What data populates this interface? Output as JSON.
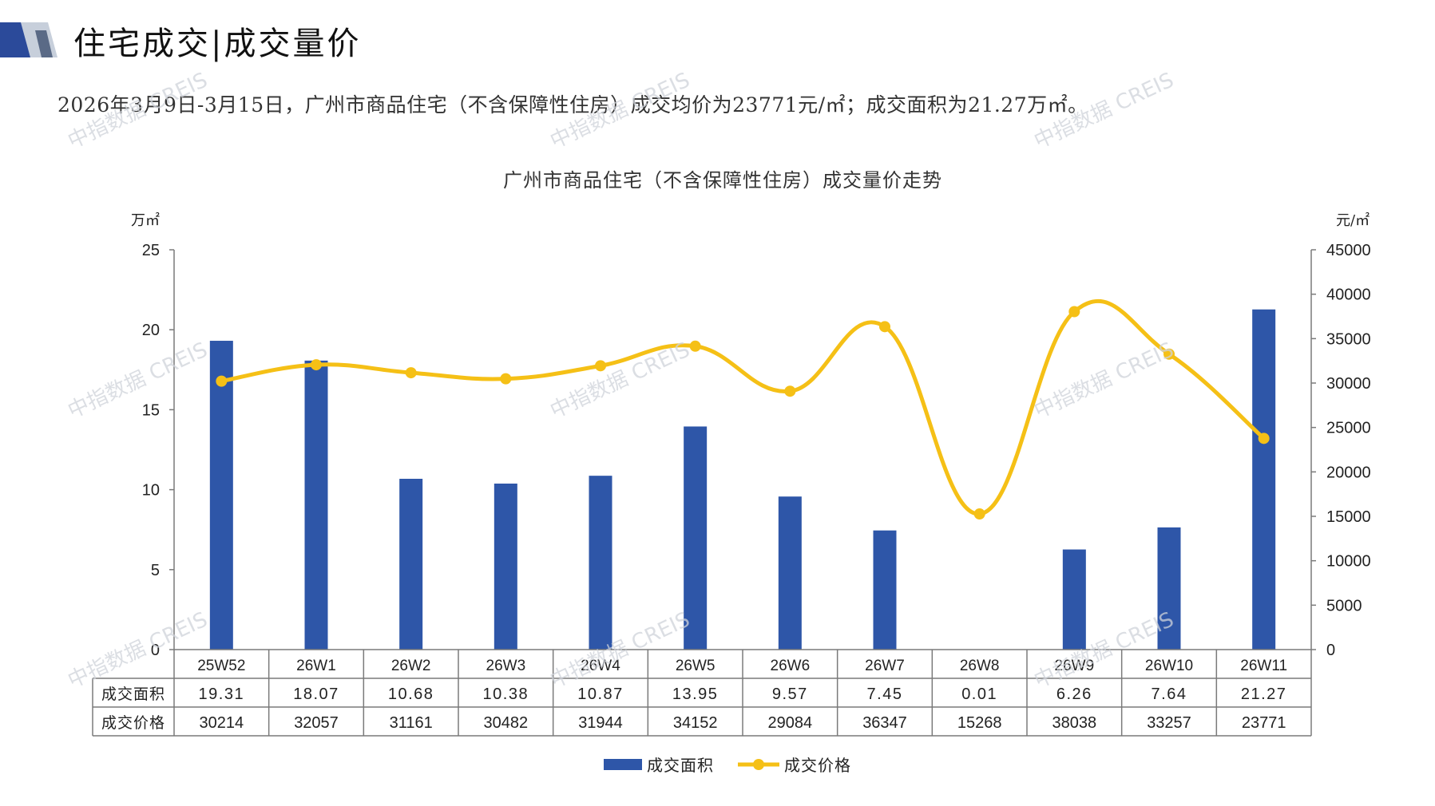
{
  "header": {
    "title": "住宅成交|成交量价",
    "summary": "2026年3月9日-3月15日，广州市商品住宅（不含保障性住房）成交均价为23771元/㎡；成交面积为21.27万㎡。"
  },
  "watermark": "中指数据 CREIS",
  "chart_data": {
    "type": "bar+line",
    "title": "广州市商品住宅（不含保障性住房）成交量价走势",
    "y_left_unit": "万㎡",
    "y_right_unit": "元/㎡",
    "y_left_range": [
      0,
      25
    ],
    "y_left_ticks": [
      "0",
      "5",
      "10",
      "15",
      "20",
      "25"
    ],
    "y_right_range": [
      0,
      45000
    ],
    "y_right_ticks": [
      "0",
      "5000",
      "10000",
      "15000",
      "20000",
      "25000",
      "30000",
      "35000",
      "40000",
      "45000"
    ],
    "categories": [
      "25W52",
      "26W1",
      "26W2",
      "26W3",
      "26W4",
      "26W5",
      "26W6",
      "26W7",
      "26W8",
      "26W9",
      "26W10",
      "26W11"
    ],
    "series": [
      {
        "name": "成交面积",
        "type": "bar",
        "axis": "left",
        "values": [
          19.31,
          18.07,
          10.68,
          10.38,
          10.87,
          13.95,
          9.57,
          7.45,
          0.01,
          6.26,
          7.64,
          21.27
        ],
        "labels": [
          "19.31",
          "18.07",
          "10.68",
          "10.38",
          "10.87",
          "13.95",
          "9.57",
          "7.45",
          "0.01",
          "6.26",
          "7.64",
          "21.27"
        ]
      },
      {
        "name": "成交价格",
        "type": "line",
        "axis": "right",
        "values": [
          30214,
          32057,
          31161,
          30482,
          31944,
          34152,
          29084,
          36347,
          15268,
          38038,
          33257,
          23771
        ],
        "labels": [
          "30214",
          "32057",
          "31161",
          "30482",
          "31944",
          "34152",
          "29084",
          "36347",
          "15268",
          "38038",
          "33257",
          "23771"
        ]
      }
    ],
    "legend_position": "bottom-center",
    "grid": false
  },
  "colors": {
    "bar": "#2e56a8",
    "line": "#f5c016",
    "logo_dark": "#2b4a9a",
    "logo_light": "#c7cfdb"
  }
}
